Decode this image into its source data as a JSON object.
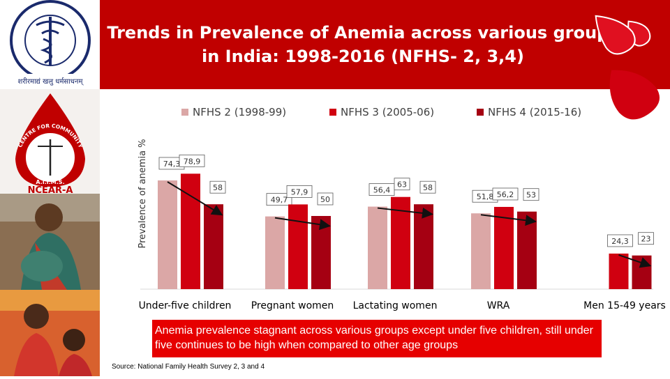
{
  "header": {
    "title_line1": "Trends in Prevalence of Anemia across various groups",
    "title_line2": "in India: 1998-2016 (NFHS- 2, 3,4)"
  },
  "logos": {
    "aiims_hindi": "शरीरमाद्यं खलु धर्मसाधनम्",
    "ccm_logo": "CENTRE FOR COMMUNITY MEDICINE",
    "ccm_abbrev": "A.I.I.M.S.",
    "ncear": "NCEAR-A"
  },
  "colors": {
    "nfhs2": "#dba7a6",
    "nfhs3": "#d00010",
    "nfhs4": "#a50012",
    "title_bg": "#c00000",
    "callout_bg": "#e60000"
  },
  "chart_data": {
    "type": "bar",
    "ylabel": "Prevalence of anemia %",
    "categories": [
      "Under-five children",
      "Pregnant women",
      "Lactating women",
      "WRA",
      "Men 15-49 years"
    ],
    "series": [
      {
        "name": "NFHS 2 (1998-99)",
        "values": [
          74.3,
          49.7,
          56.4,
          51.8,
          null
        ],
        "labels": [
          "74,3",
          "49,7",
          "56,4",
          "51,8",
          ""
        ]
      },
      {
        "name": "NFHS 3 (2005-06)",
        "values": [
          78.9,
          57.9,
          63,
          56.2,
          24.3
        ],
        "labels": [
          "78,9",
          "57,9",
          "63",
          "56,2",
          "24,3"
        ]
      },
      {
        "name": "NFHS 4 (2015-16)",
        "values": [
          58,
          50,
          58,
          53,
          23
        ],
        "labels": [
          "58",
          "50",
          "58",
          "53",
          "23"
        ]
      }
    ],
    "ylim": [
      0,
      100
    ],
    "legend": "top"
  },
  "callout": "Anemia prevalence stagnant across various groups except under five children, still under five continues to be high when compared to other age groups",
  "source": "Source: National Family Health Survey 2, 3 and 4"
}
